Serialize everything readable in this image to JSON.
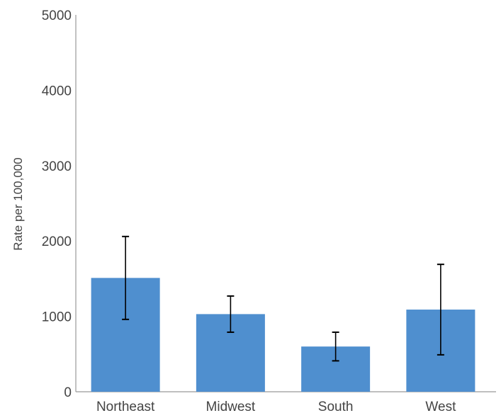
{
  "chart_data": {
    "type": "bar",
    "title": "",
    "xlabel": "",
    "ylabel": "Rate per 100,000",
    "categories": [
      "Northeast",
      "Midwest",
      "South",
      "West"
    ],
    "values": [
      1510,
      1030,
      600,
      1090
    ],
    "error_bars": [
      {
        "low": 960,
        "high": 2060
      },
      {
        "low": 790,
        "high": 1270
      },
      {
        "low": 410,
        "high": 790
      },
      {
        "low": 490,
        "high": 1690
      }
    ],
    "ylim": [
      0,
      5000
    ],
    "yticks": [
      0,
      1000,
      2000,
      3000,
      4000,
      5000
    ],
    "ytick_labels": [
      "0",
      "1000",
      "2000",
      "3000",
      "4000",
      "5000"
    ],
    "grid": false,
    "legend": "none",
    "colors": {
      "bar": "#4f8fcf",
      "error_bar": "#000000",
      "axis": "#999999",
      "text": "#444444"
    }
  }
}
